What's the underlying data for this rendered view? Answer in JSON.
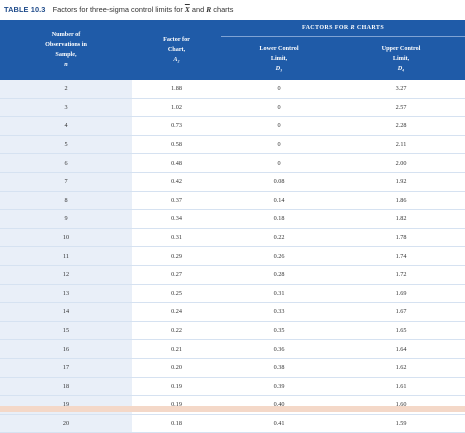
{
  "caption": {
    "tag": "TABLE 10.3",
    "text_before": "Factors for three-sigma control limits for",
    "xbar_symbol": "X",
    "text_middle": "and",
    "r_symbol": "R",
    "text_after": "charts"
  },
  "header": {
    "group_label": "FACTORS FOR",
    "group_symbol": "R",
    "group_suffix": "CHARTS",
    "col1": {
      "line1": "Number of",
      "line2": "Observations in",
      "line3": "Sample,",
      "symbol": "n"
    },
    "col2": {
      "line1": "Factor for",
      "line2": "Chart,",
      "symbol": "A₂"
    },
    "col3": {
      "line1": "Lower Control",
      "line2": "Limit,",
      "symbol": "D₃"
    },
    "col4": {
      "line1": "Upper Control",
      "line2": "Limit,",
      "symbol": "D₄"
    }
  },
  "rows": [
    {
      "n": "2",
      "a2": "1.88",
      "d3": "0",
      "d4": "3.27"
    },
    {
      "n": "3",
      "a2": "1.02",
      "d3": "0",
      "d4": "2.57"
    },
    {
      "n": "4",
      "a2": "0.73",
      "d3": "0",
      "d4": "2.28"
    },
    {
      "n": "5",
      "a2": "0.58",
      "d3": "0",
      "d4": "2.11"
    },
    {
      "n": "6",
      "a2": "0.48",
      "d3": "0",
      "d4": "2.00"
    },
    {
      "n": "7",
      "a2": "0.42",
      "d3": "0.08",
      "d4": "1.92"
    },
    {
      "n": "8",
      "a2": "0.37",
      "d3": "0.14",
      "d4": "1.86"
    },
    {
      "n": "9",
      "a2": "0.34",
      "d3": "0.18",
      "d4": "1.82"
    },
    {
      "n": "10",
      "a2": "0.31",
      "d3": "0.22",
      "d4": "1.78"
    },
    {
      "n": "11",
      "a2": "0.29",
      "d3": "0.26",
      "d4": "1.74"
    },
    {
      "n": "12",
      "a2": "0.27",
      "d3": "0.28",
      "d4": "1.72"
    },
    {
      "n": "13",
      "a2": "0.25",
      "d3": "0.31",
      "d4": "1.69"
    },
    {
      "n": "14",
      "a2": "0.24",
      "d3": "0.33",
      "d4": "1.67"
    },
    {
      "n": "15",
      "a2": "0.22",
      "d3": "0.35",
      "d4": "1.65"
    },
    {
      "n": "16",
      "a2": "0.21",
      "d3": "0.36",
      "d4": "1.64"
    },
    {
      "n": "17",
      "a2": "0.20",
      "d3": "0.38",
      "d4": "1.62"
    },
    {
      "n": "18",
      "a2": "0.19",
      "d3": "0.39",
      "d4": "1.61"
    },
    {
      "n": "19",
      "a2": "0.19",
      "d3": "0.40",
      "d4": "1.60"
    },
    {
      "n": "20",
      "a2": "0.18",
      "d3": "0.41",
      "d4": "1.59"
    }
  ],
  "colors": {
    "header_bg": "#1f5ba8",
    "first_col_bg": "#e9eff8",
    "caption_tag": "#1f4b8a",
    "bottom_strip": "#f4d8c8"
  }
}
